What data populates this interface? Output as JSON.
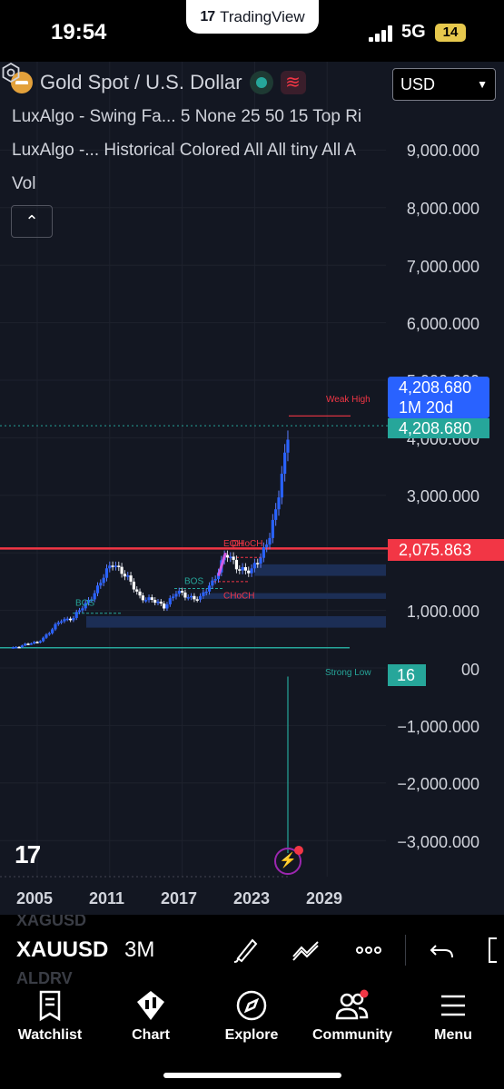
{
  "status_bar": {
    "time": "19:54",
    "network": "5G",
    "battery": "14",
    "app_pill": "TradingView"
  },
  "header": {
    "symbol_title": "Gold Spot / U.S. Dollar",
    "currency": "USD",
    "indicators": [
      "LuxAlgo - Swing Fa... 5 None 25 50 15 Top Ri",
      "LuxAlgo -... Historical Colored All All tiny All A",
      "Vol"
    ]
  },
  "price_axis": {
    "ticks": [
      "9,000.000",
      "8,000.000",
      "7,000.000",
      "6,000.000",
      "4,000.000",
      "3,000.000",
      "1,000.000",
      "00",
      "−1,000.000",
      "−2,000.000",
      "−3,000.000"
    ],
    "hidden_tick": "5,000.000",
    "countdown_price": "4,208.680",
    "countdown": "1M 20d",
    "last_price": "4,208.680",
    "hline_price": "2,075.863",
    "volume_value": "16"
  },
  "time_axis": {
    "labels": [
      "2005",
      "2011",
      "2017",
      "2023",
      "2029"
    ]
  },
  "annotations": {
    "weak_high": "Weak High",
    "strong_low": "Strong Low",
    "bos1": "BOS",
    "bos2": "BOS",
    "choch1": "CHoCH",
    "choch2": "CHoCH",
    "eqh": "EQH"
  },
  "colors": {
    "accent_blue": "#2962ff",
    "green": "#26a69a",
    "red": "#f23645",
    "bg": "#131722"
  },
  "toolbar": {
    "symbol": "XAUUSD",
    "timeframe": "3M",
    "ghost_above": "XAGUSD",
    "ghost_below": "ALDRV"
  },
  "nav": {
    "watchlist": "Watchlist",
    "chart": "Chart",
    "explore": "Explore",
    "community": "Community",
    "menu": "Menu"
  },
  "chart_data": {
    "type": "candlestick",
    "symbol": "XAUUSD",
    "x_labels": [
      "2005",
      "2011",
      "2017",
      "2023",
      "2029"
    ],
    "ylim": [
      -3000,
      9000
    ],
    "last_price": 4208.68,
    "horizontal_line": 2075.863,
    "close_series": [
      {
        "t": 2003.0,
        "v": 350
      },
      {
        "t": 2004.0,
        "v": 410
      },
      {
        "t": 2005.0,
        "v": 440
      },
      {
        "t": 2006.0,
        "v": 620
      },
      {
        "t": 2007.0,
        "v": 830
      },
      {
        "t": 2008.0,
        "v": 880
      },
      {
        "t": 2009.0,
        "v": 1100
      },
      {
        "t": 2010.0,
        "v": 1400
      },
      {
        "t": 2011.3,
        "v": 1850
      },
      {
        "t": 2012.0,
        "v": 1680
      },
      {
        "t": 2013.5,
        "v": 1250
      },
      {
        "t": 2015.5,
        "v": 1080
      },
      {
        "t": 2016.5,
        "v": 1300
      },
      {
        "t": 2018.5,
        "v": 1200
      },
      {
        "t": 2019.5,
        "v": 1500
      },
      {
        "t": 2020.6,
        "v": 1970
      },
      {
        "t": 2021.5,
        "v": 1780
      },
      {
        "t": 2022.7,
        "v": 1650
      },
      {
        "t": 2023.5,
        "v": 1950
      },
      {
        "t": 2024.3,
        "v": 2350
      },
      {
        "t": 2024.8,
        "v": 2700
      },
      {
        "t": 2025.2,
        "v": 3300
      },
      {
        "t": 2025.6,
        "v": 3800
      },
      {
        "t": 2025.8,
        "v": 4208.68
      }
    ]
  }
}
